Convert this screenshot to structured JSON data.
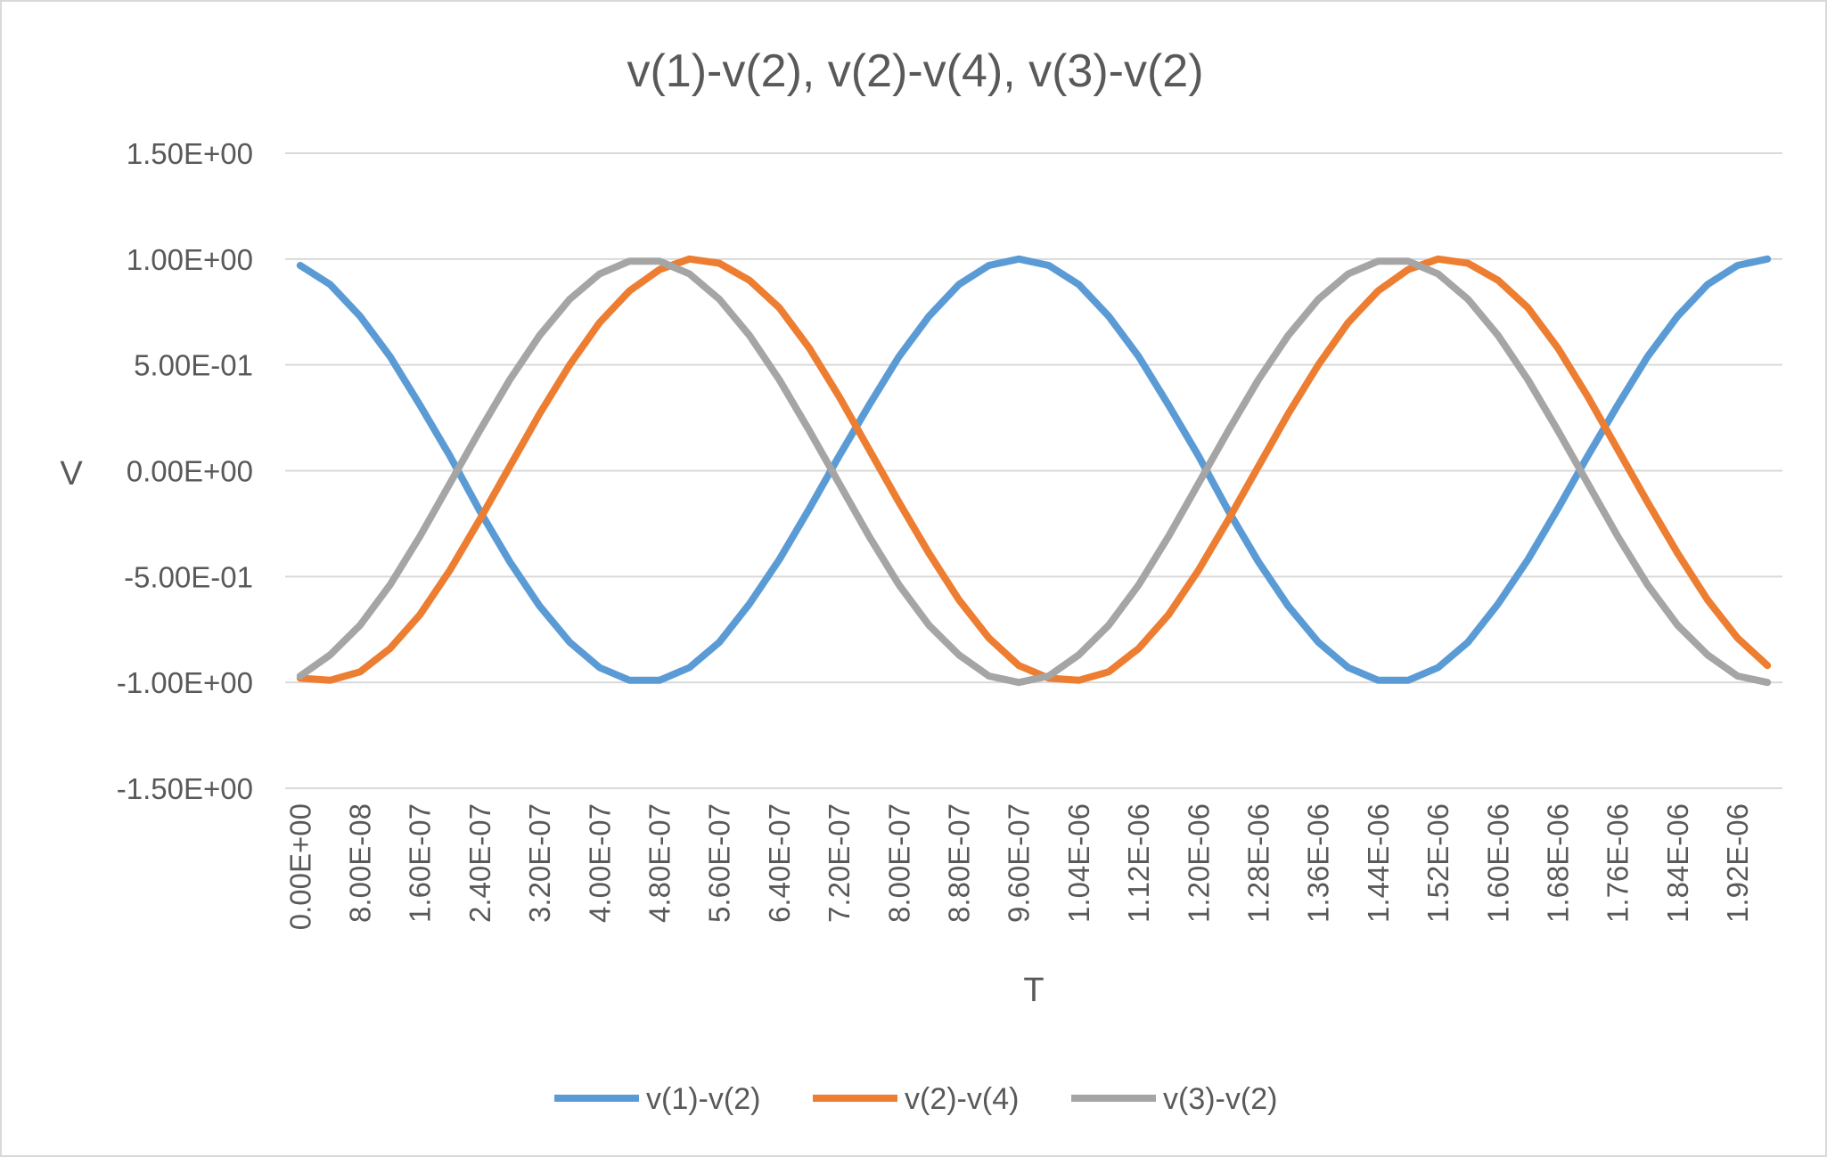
{
  "chart_data": {
    "type": "line",
    "title": "v(1)-v(2), v(2)-v(4), v(3)-v(2)",
    "xlabel": "T",
    "ylabel": "V",
    "ylim": [
      -1.5,
      1.5
    ],
    "yticks": [
      "1.50E+00",
      "1.00E+00",
      "5.00E-01",
      "0.00E+00",
      "-5.00E-01",
      "-1.00E+00",
      "-1.50E+00"
    ],
    "ytick_values": [
      1.5,
      1.0,
      0.5,
      0.0,
      -0.5,
      -1.0,
      -1.5
    ],
    "x": [
      0,
      4e-08,
      8e-08,
      1.2e-07,
      1.6e-07,
      2e-07,
      2.4e-07,
      2.8e-07,
      3.2e-07,
      3.6e-07,
      4e-07,
      4.4e-07,
      4.8e-07,
      5.2e-07,
      5.6e-07,
      6e-07,
      6.4e-07,
      6.8e-07,
      7.2e-07,
      7.6e-07,
      8e-07,
      8.4e-07,
      8.8e-07,
      9.2e-07,
      9.6e-07,
      1e-06,
      1.04e-06,
      1.08e-06,
      1.12e-06,
      1.16e-06,
      1.2e-06,
      1.24e-06,
      1.28e-06,
      1.32e-06,
      1.36e-06,
      1.4e-06,
      1.44e-06,
      1.48e-06,
      1.52e-06,
      1.56e-06,
      1.6e-06,
      1.64e-06,
      1.68e-06,
      1.72e-06,
      1.76e-06,
      1.8e-06,
      1.84e-06,
      1.88e-06,
      1.92e-06,
      1.96e-06
    ],
    "xtick_labels": [
      "0.00E+00",
      "8.00E-08",
      "1.60E-07",
      "2.40E-07",
      "3.20E-07",
      "4.00E-07",
      "4.80E-07",
      "5.60E-07",
      "6.40E-07",
      "7.20E-07",
      "8.00E-07",
      "8.80E-07",
      "9.60E-07",
      "1.04E-06",
      "1.12E-06",
      "1.20E-06",
      "1.28E-06",
      "1.36E-06",
      "1.44E-06",
      "1.52E-06",
      "1.60E-06",
      "1.68E-06",
      "1.76E-06",
      "1.84E-06",
      "1.92E-06"
    ],
    "grid": true,
    "legend": "bottom",
    "series": [
      {
        "name": "v(1)-v(2)",
        "color": "#5b9bd5",
        "values": [
          0.97,
          0.88,
          0.73,
          0.54,
          0.31,
          0.07,
          -0.19,
          -0.43,
          -0.64,
          -0.81,
          -0.93,
          -0.99,
          -0.99,
          -0.93,
          -0.81,
          -0.63,
          -0.42,
          -0.18,
          0.07,
          0.31,
          0.54,
          0.73,
          0.88,
          0.97,
          1.0,
          0.97,
          0.88,
          0.73,
          0.54,
          0.31,
          0.07,
          -0.19,
          -0.43,
          -0.64,
          -0.81,
          -0.93,
          -0.99,
          -0.99,
          -0.93,
          -0.81,
          -0.63,
          -0.42,
          -0.18,
          0.07,
          0.31,
          0.54,
          0.73,
          0.88,
          0.97,
          1.0
        ]
      },
      {
        "name": "v(2)-v(4)",
        "color": "#ed7d31",
        "values": [
          -0.98,
          -0.99,
          -0.95,
          -0.84,
          -0.68,
          -0.47,
          -0.23,
          0.02,
          0.27,
          0.5,
          0.7,
          0.85,
          0.95,
          1.0,
          0.98,
          0.9,
          0.77,
          0.58,
          0.35,
          0.1,
          -0.15,
          -0.39,
          -0.61,
          -0.79,
          -0.92,
          -0.98,
          -0.99,
          -0.95,
          -0.84,
          -0.68,
          -0.47,
          -0.23,
          0.02,
          0.27,
          0.5,
          0.7,
          0.85,
          0.95,
          1.0,
          0.98,
          0.9,
          0.77,
          0.58,
          0.35,
          0.1,
          -0.15,
          -0.39,
          -0.61,
          -0.79,
          -0.92
        ]
      },
      {
        "name": "v(3)-v(2)",
        "color": "#a5a5a5",
        "values": [
          -0.97,
          -0.87,
          -0.73,
          -0.54,
          -0.31,
          -0.06,
          0.19,
          0.43,
          0.64,
          0.81,
          0.93,
          0.99,
          0.99,
          0.93,
          0.81,
          0.64,
          0.43,
          0.19,
          -0.06,
          -0.31,
          -0.54,
          -0.73,
          -0.87,
          -0.97,
          -1.0,
          -0.97,
          -0.87,
          -0.73,
          -0.54,
          -0.31,
          -0.06,
          0.19,
          0.43,
          0.64,
          0.81,
          0.93,
          0.99,
          0.99,
          0.93,
          0.81,
          0.64,
          0.43,
          0.19,
          -0.06,
          -0.31,
          -0.54,
          -0.73,
          -0.87,
          -0.97,
          -1.0
        ]
      }
    ]
  }
}
